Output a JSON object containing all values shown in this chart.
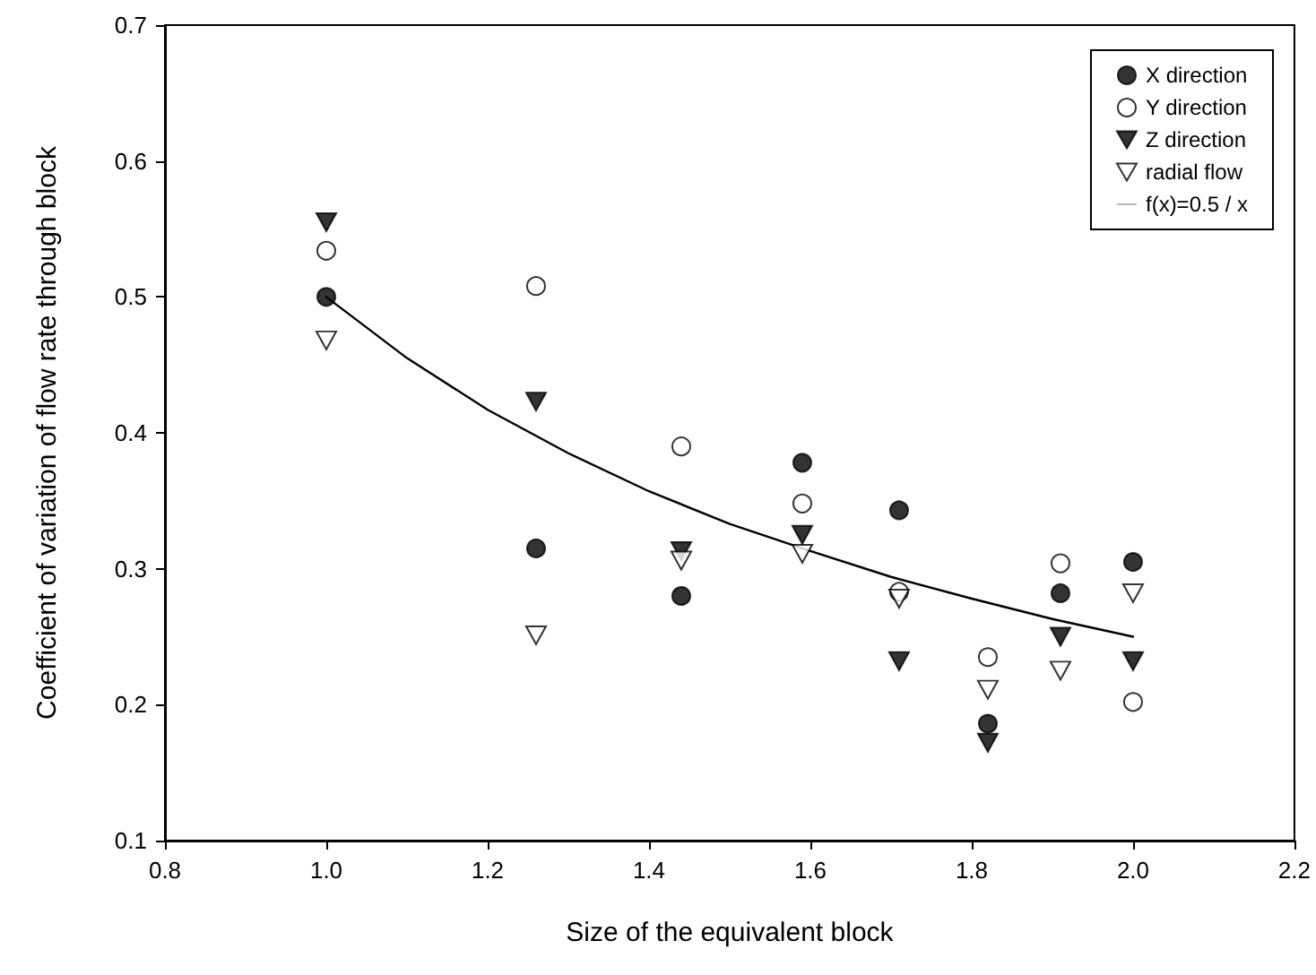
{
  "chart_data": {
    "type": "scatter",
    "xlabel": "Size of the equivalent block",
    "ylabel": "Coefficient of variation of flow rate through block",
    "x": [
      1.0,
      1.26,
      1.44,
      1.59,
      1.71,
      1.82,
      1.91,
      2.0
    ],
    "series": [
      {
        "name": "X direction",
        "color": "#000000",
        "marker": "circle",
        "values": [
          0.5,
          0.315,
          0.28,
          0.378,
          0.343,
          0.186,
          0.282,
          0.305
        ]
      },
      {
        "name": "Y direction",
        "color": "#ffffff",
        "marker": "circle",
        "values": [
          0.534,
          0.508,
          0.39,
          0.348,
          0.283,
          0.235,
          0.304,
          0.202
        ]
      },
      {
        "name": "Z direction",
        "color": "#000000",
        "marker": "triangle",
        "values": [
          0.555,
          0.423,
          0.313,
          0.325,
          0.232,
          0.172,
          0.25,
          0.232
        ]
      },
      {
        "name": "radial flow",
        "color": "#ffffff",
        "marker": "triangle",
        "values": [
          0.468,
          0.251,
          0.306,
          0.311,
          0.278,
          0.211,
          0.225,
          0.282
        ]
      },
      {
        "name": "f(x)=0.5 / x",
        "type": "line",
        "color": "#000000",
        "line_style": "solid",
        "marker": "none",
        "x": [
          1.0,
          1.1,
          1.2,
          1.3,
          1.4,
          1.5,
          1.6,
          1.7,
          1.8,
          1.9,
          2.0
        ],
        "values": [
          0.5,
          0.455,
          0.417,
          0.385,
          0.357,
          0.333,
          0.313,
          0.294,
          0.278,
          0.263,
          0.25
        ]
      }
    ],
    "xlim": [
      0.8,
      2.2
    ],
    "xticks": [
      0.8,
      {
        "value": 1.0,
        "label": "1.0"
      },
      1.2,
      1.4,
      1.6,
      1.8,
      {
        "value": 2.0,
        "label": "2.0"
      },
      2.2
    ],
    "ylim": [
      0.1,
      0.7
    ],
    "yticks": [
      0.1,
      0.2,
      0.3,
      0.4,
      0.5,
      0.6,
      0.7
    ],
    "grid": false,
    "legend": "top right"
  }
}
